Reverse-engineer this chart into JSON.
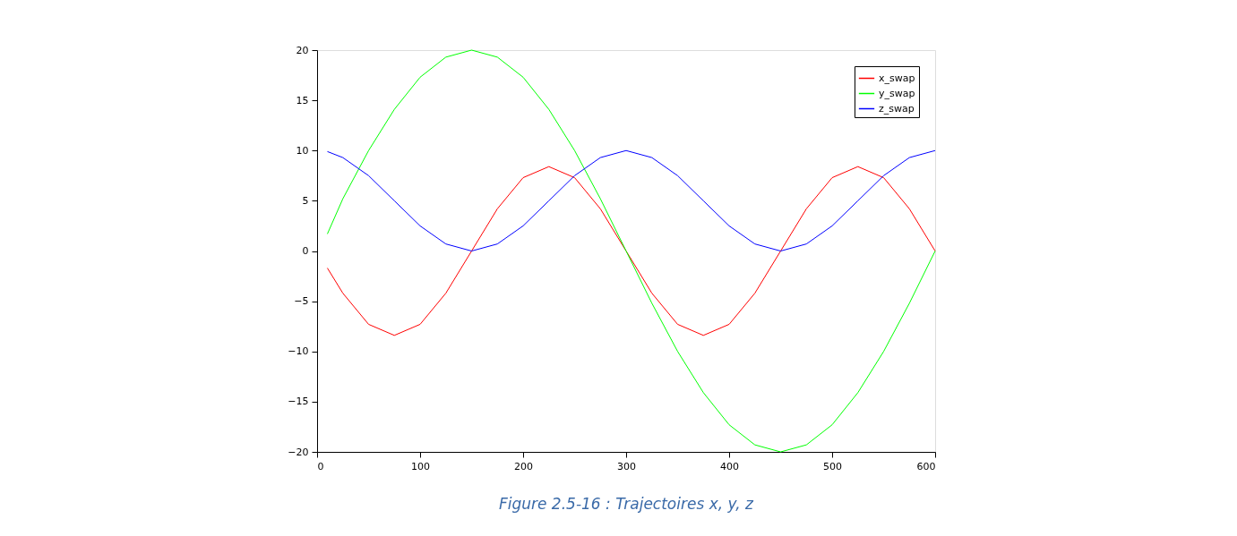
{
  "chart_data": {
    "type": "line",
    "x": [
      10,
      25,
      50,
      75,
      100,
      125,
      150,
      175,
      200,
      225,
      250,
      275,
      300,
      325,
      350,
      375,
      400,
      425,
      450,
      475,
      500,
      525,
      550,
      575,
      600
    ],
    "series": [
      {
        "name": "x_swap",
        "color": "#ff0000",
        "values": [
          -1.7,
          -4.2,
          -7.3,
          -8.4,
          -7.3,
          -4.2,
          0,
          4.2,
          7.3,
          8.4,
          7.3,
          4.2,
          0,
          -4.2,
          -7.3,
          -8.4,
          -7.3,
          -4.2,
          0,
          4.2,
          7.3,
          8.4,
          7.3,
          4.2,
          0
        ]
      },
      {
        "name": "y_swap",
        "color": "#00ff00",
        "values": [
          1.7,
          5.2,
          10,
          14.1,
          17.3,
          19.3,
          20,
          19.3,
          17.3,
          14.1,
          10,
          5.2,
          0,
          -5.2,
          -10,
          -14.1,
          -17.3,
          -19.3,
          -20,
          -19.3,
          -17.3,
          -14.1,
          -10,
          -5.2,
          0
        ]
      },
      {
        "name": "z_swap",
        "color": "#0000ff",
        "values": [
          9.9,
          9.3,
          7.5,
          5,
          2.5,
          0.7,
          0,
          0.7,
          2.5,
          5,
          7.5,
          9.3,
          10,
          9.3,
          7.5,
          5,
          2.5,
          0.7,
          0,
          0.7,
          2.5,
          5,
          7.5,
          9.3,
          10
        ]
      }
    ],
    "xlim": [
      0,
      600
    ],
    "xticks": [
      0,
      100,
      200,
      300,
      400,
      500,
      600
    ],
    "ylim": [
      -20,
      20
    ],
    "yticks": [
      -20,
      -15,
      -10,
      -5,
      0,
      5,
      10,
      15,
      20
    ],
    "grid": false,
    "legend": "top right",
    "marker": "none",
    "line_style": "solid",
    "annotations": [
      "Figure 2.5-16 : Trajectoires x, y, z"
    ]
  }
}
